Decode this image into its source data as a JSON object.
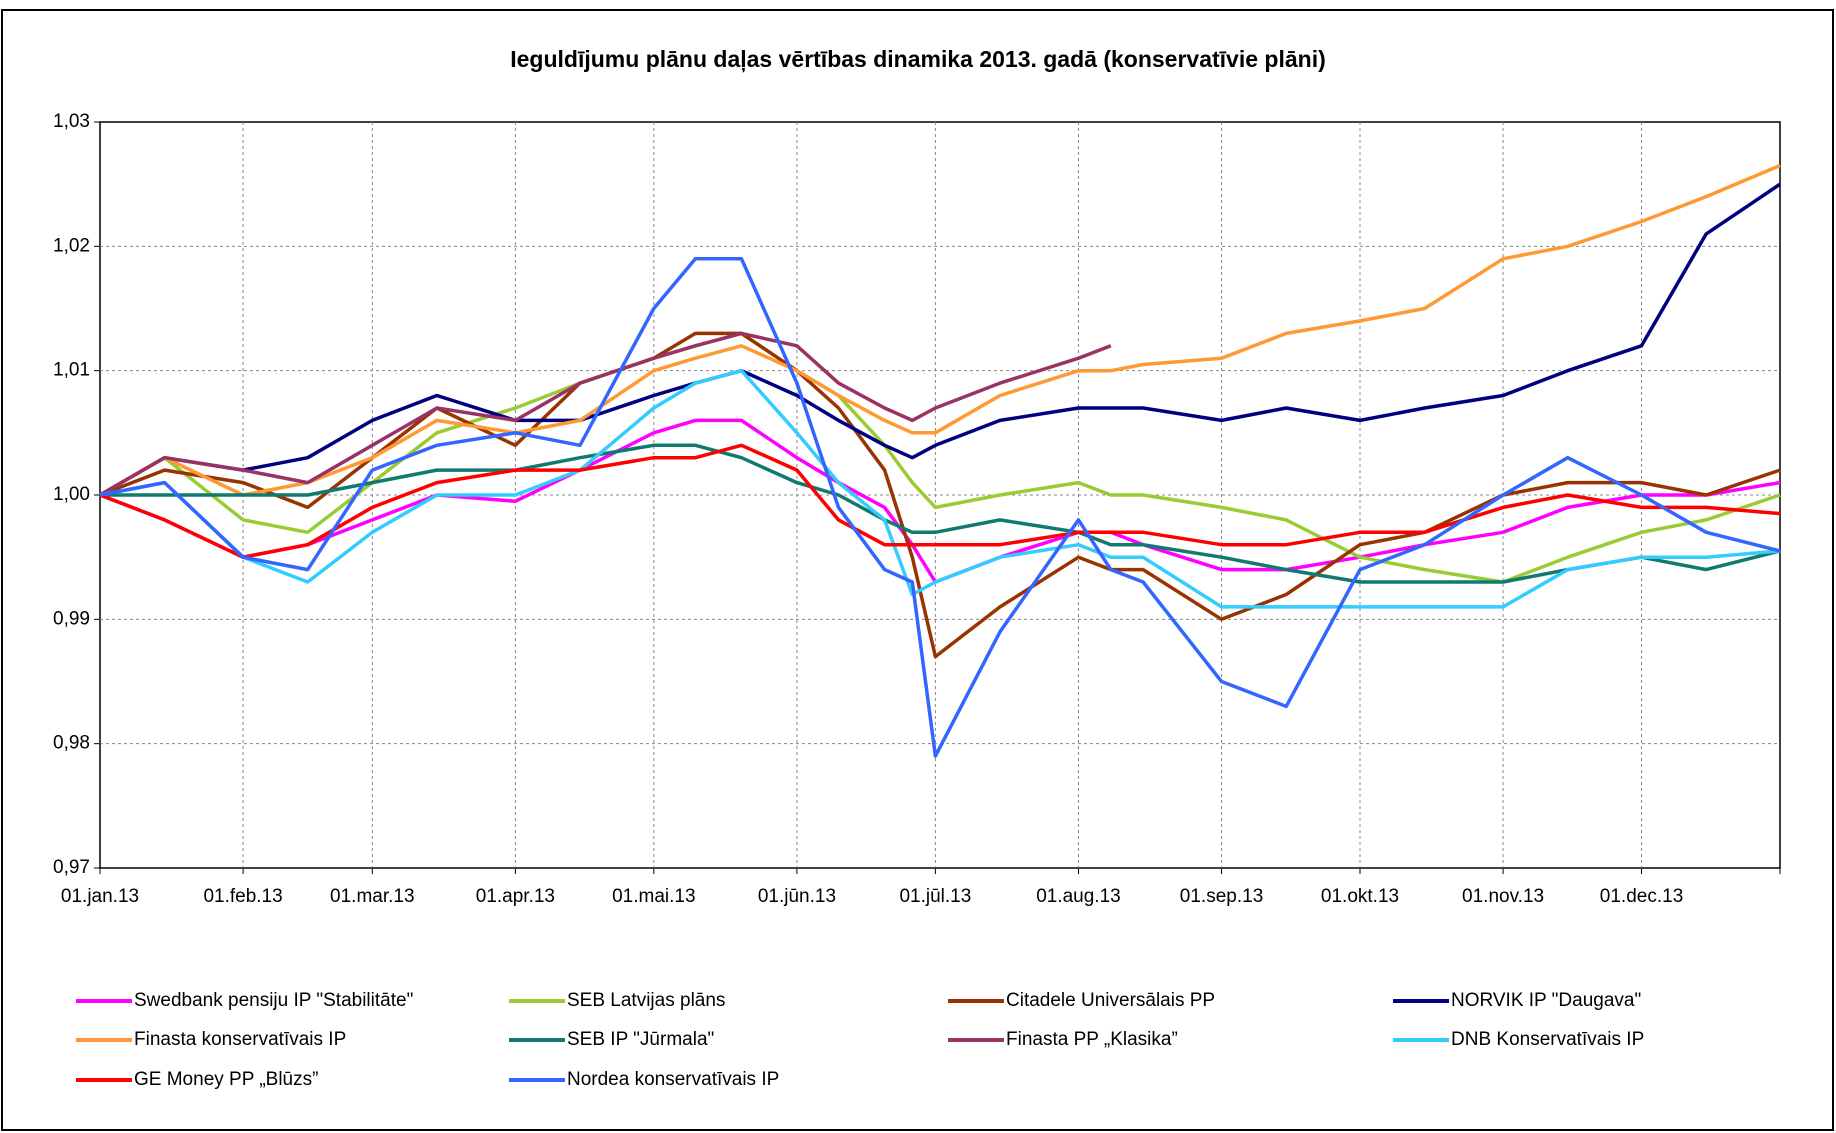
{
  "chart_data": {
    "type": "line",
    "title": "Ieguldījumu plānu daļas vērtības dinamika 2013. gadā (konservatīvie plāni)",
    "x": [
      "2013-01-01",
      "2013-01-15",
      "2013-02-01",
      "2013-02-15",
      "2013-03-01",
      "2013-03-15",
      "2013-04-01",
      "2013-04-15",
      "2013-05-01",
      "2013-05-10",
      "2013-05-20",
      "2013-06-01",
      "2013-06-10",
      "2013-06-20",
      "2013-06-26",
      "2013-07-01",
      "2013-07-15",
      "2013-08-01",
      "2013-08-08",
      "2013-08-15",
      "2013-09-01",
      "2013-09-15",
      "2013-10-01",
      "2013-10-15",
      "2013-11-01",
      "2013-11-15",
      "2013-12-01",
      "2013-12-15",
      "2013-12-31"
    ],
    "xlim": [
      "2013-01-01",
      "2013-12-31"
    ],
    "xticks": [
      {
        "value": "2013-01-01",
        "label": "01.jan.13"
      },
      {
        "value": "2013-02-01",
        "label": "01.feb.13"
      },
      {
        "value": "2013-03-01",
        "label": "01.mar.13"
      },
      {
        "value": "2013-04-01",
        "label": "01.apr.13"
      },
      {
        "value": "2013-05-01",
        "label": "01.mai.13"
      },
      {
        "value": "2013-06-01",
        "label": "01.jūn.13"
      },
      {
        "value": "2013-07-01",
        "label": "01.jūl.13"
      },
      {
        "value": "2013-08-01",
        "label": "01.aug.13"
      },
      {
        "value": "2013-09-01",
        "label": "01.sep.13"
      },
      {
        "value": "2013-10-01",
        "label": "01.okt.13"
      },
      {
        "value": "2013-11-01",
        "label": "01.nov.13"
      },
      {
        "value": "2013-12-01",
        "label": "01.dec.13"
      }
    ],
    "ylim": [
      0.97,
      1.03
    ],
    "yticks": [
      {
        "value": 0.97,
        "label": "0,97"
      },
      {
        "value": 0.98,
        "label": "0,98"
      },
      {
        "value": 0.99,
        "label": "0,99"
      },
      {
        "value": 1.0,
        "label": "1,00"
      },
      {
        "value": 1.01,
        "label": "1,01"
      },
      {
        "value": 1.02,
        "label": "1,02"
      },
      {
        "value": 1.03,
        "label": "1,03"
      }
    ],
    "grid": true,
    "series": [
      {
        "name": "Swedbank pensiju IP \"Stabilitāte\"",
        "color": "#ff00ff",
        "values": [
          1.0,
          0.998,
          0.995,
          0.996,
          0.998,
          1.0,
          0.9995,
          1.002,
          1.005,
          1.006,
          1.006,
          1.003,
          1.001,
          0.999,
          0.996,
          0.993,
          0.995,
          0.997,
          0.997,
          0.996,
          0.994,
          0.994,
          0.995,
          0.996,
          0.997,
          0.999,
          1.0,
          1.0,
          1.001
        ]
      },
      {
        "name": "SEB Latvijas plāns",
        "color": "#99cc33",
        "values": [
          1.0,
          1.003,
          0.998,
          0.997,
          1.001,
          1.005,
          1.007,
          1.009,
          1.011,
          1.012,
          1.013,
          1.01,
          1.008,
          1.004,
          1.001,
          0.999,
          1.0,
          1.001,
          1.0,
          1.0,
          0.999,
          0.998,
          0.995,
          0.994,
          0.993,
          0.995,
          0.997,
          0.998,
          1.0
        ]
      },
      {
        "name": "Citadele Universālais PP",
        "color": "#993300",
        "values": [
          1.0,
          1.002,
          1.001,
          0.999,
          1.003,
          1.007,
          1.004,
          1.009,
          1.011,
          1.013,
          1.013,
          1.01,
          1.007,
          1.002,
          0.995,
          0.987,
          0.991,
          0.995,
          0.994,
          0.994,
          0.99,
          0.992,
          0.996,
          0.997,
          1.0,
          1.001,
          1.001,
          1.0,
          1.002
        ]
      },
      {
        "name": "NORVIK  IP \"Daugava\"",
        "color": "#000080",
        "values": [
          1.0,
          1.003,
          1.002,
          1.003,
          1.006,
          1.008,
          1.006,
          1.006,
          1.008,
          1.009,
          1.01,
          1.008,
          1.006,
          1.004,
          1.003,
          1.004,
          1.006,
          1.007,
          1.007,
          1.007,
          1.006,
          1.007,
          1.006,
          1.007,
          1.008,
          1.01,
          1.012,
          1.021,
          1.025
        ]
      },
      {
        "name": "Finasta konservatīvais IP",
        "color": "#ff9933",
        "values": [
          1.0,
          1.003,
          1.0,
          1.001,
          1.003,
          1.006,
          1.005,
          1.006,
          1.01,
          1.011,
          1.012,
          1.01,
          1.008,
          1.006,
          1.005,
          1.005,
          1.008,
          1.01,
          1.01,
          1.0105,
          1.011,
          1.013,
          1.014,
          1.015,
          1.019,
          1.02,
          1.022,
          1.024,
          1.0265
        ]
      },
      {
        "name": "SEB IP \"Jūrmala\"",
        "color": "#117a6f",
        "values": [
          1.0,
          1.0,
          1.0,
          1.0,
          1.001,
          1.002,
          1.002,
          1.003,
          1.004,
          1.004,
          1.003,
          1.001,
          1.0,
          0.998,
          0.997,
          0.997,
          0.998,
          0.997,
          0.996,
          0.996,
          0.995,
          0.994,
          0.993,
          0.993,
          0.993,
          0.994,
          0.995,
          0.994,
          0.9955
        ]
      },
      {
        "name": "Finasta PP „Klasika”",
        "color": "#993366",
        "values": [
          1.0,
          1.003,
          1.002,
          1.001,
          1.004,
          1.007,
          1.006,
          1.009,
          1.011,
          1.012,
          1.013,
          1.012,
          1.009,
          1.007,
          1.006,
          1.007,
          1.009,
          1.011,
          1.012,
          null,
          null,
          null,
          null,
          null,
          null,
          null,
          null,
          null,
          null
        ]
      },
      {
        "name": "DNB Konservatīvais IP",
        "color": "#33ccff",
        "values": [
          1.0,
          1.001,
          0.995,
          0.993,
          0.997,
          1.0,
          1.0,
          1.002,
          1.007,
          1.009,
          1.01,
          1.005,
          1.001,
          0.998,
          0.992,
          0.993,
          0.995,
          0.996,
          0.995,
          0.995,
          0.991,
          0.991,
          0.991,
          0.991,
          0.991,
          0.994,
          0.995,
          0.995,
          0.9955
        ]
      },
      {
        "name": "GE Money PP „Blūzs”",
        "color": "#ff0000",
        "values": [
          1.0,
          0.998,
          0.995,
          0.996,
          0.999,
          1.001,
          1.002,
          1.002,
          1.003,
          1.003,
          1.004,
          1.002,
          0.998,
          0.996,
          0.996,
          0.996,
          0.996,
          0.997,
          0.997,
          0.997,
          0.996,
          0.996,
          0.997,
          0.997,
          0.999,
          1.0,
          0.999,
          0.999,
          0.9985
        ]
      },
      {
        "name": "Nordea konservatīvais IP",
        "color": "#3366ff",
        "values": [
          1.0,
          1.001,
          0.995,
          0.994,
          1.002,
          1.004,
          1.005,
          1.004,
          1.015,
          1.019,
          1.019,
          1.009,
          0.999,
          0.994,
          0.993,
          0.979,
          0.989,
          0.998,
          0.994,
          0.993,
          0.985,
          0.983,
          0.994,
          0.996,
          1.0,
          1.003,
          1.0,
          0.997,
          0.9955
        ]
      }
    ]
  }
}
